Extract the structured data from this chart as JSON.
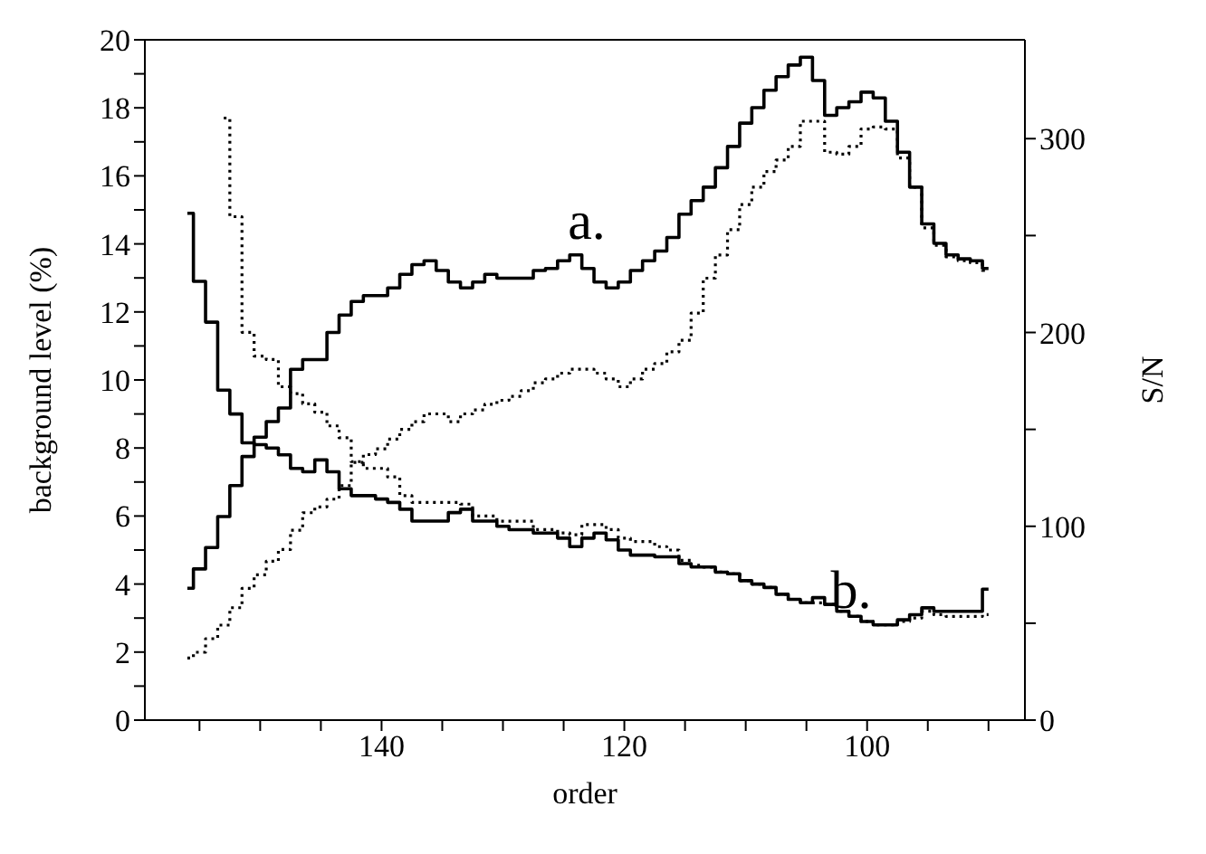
{
  "chart_data": {
    "type": "step",
    "xlabel": "order",
    "ylabel": "background level (%)",
    "y2label": "S/N",
    "xlim": [
      159.5,
      87
    ],
    "xticks": [
      {
        "value": 155,
        "label": null
      },
      {
        "value": 150,
        "label": null
      },
      {
        "value": 145,
        "label": null
      },
      140,
      {
        "value": 135,
        "label": null
      },
      {
        "value": 130,
        "label": null
      },
      {
        "value": 125,
        "label": null
      },
      120,
      {
        "value": 115,
        "label": null
      },
      {
        "value": 110,
        "label": null
      },
      {
        "value": 105,
        "label": null
      },
      100,
      {
        "value": 95,
        "label": null
      },
      {
        "value": 90,
        "label": null
      }
    ],
    "ylim": [
      0,
      20
    ],
    "yticks": [
      0,
      {
        "value": 1,
        "label": null
      },
      2,
      {
        "value": 3,
        "label": null
      },
      4,
      {
        "value": 5,
        "label": null
      },
      6,
      {
        "value": 7,
        "label": null
      },
      8,
      {
        "value": 9,
        "label": null
      },
      10,
      {
        "value": 11,
        "label": null
      },
      12,
      {
        "value": 13,
        "label": null
      },
      14,
      {
        "value": 15,
        "label": null
      },
      16,
      {
        "value": 17,
        "label": null
      },
      18,
      {
        "value": 19,
        "label": null
      },
      20
    ],
    "y2lim": [
      0,
      351
    ],
    "y2ticks": [
      0,
      {
        "value": 50,
        "label": null
      },
      100,
      {
        "value": 150,
        "label": null
      },
      200,
      {
        "value": 250,
        "label": null
      },
      300
    ],
    "annotations": [
      "a.",
      "b."
    ],
    "series": [
      {
        "color": "#000000",
        "axis": "y2",
        "line_style": "solid",
        "x": [
          156,
          155,
          154,
          153,
          152,
          151,
          150,
          149,
          148,
          147,
          146,
          145,
          144,
          143,
          142,
          141,
          140,
          139,
          138,
          137,
          136,
          135,
          134,
          133,
          132,
          131,
          130,
          129,
          128,
          127,
          126,
          125,
          124,
          123,
          122,
          121,
          120,
          119,
          118,
          117,
          116,
          115,
          114,
          113,
          112,
          111,
          110,
          109,
          108,
          107,
          106,
          105,
          104,
          103,
          102,
          101,
          100,
          99,
          98,
          97,
          96,
          95,
          94,
          93,
          92,
          91,
          90
        ],
        "values": [
          68,
          78,
          89,
          105,
          121,
          136,
          146,
          154,
          161,
          181,
          186,
          186,
          200,
          209,
          216,
          219,
          219,
          223,
          230,
          235,
          237,
          232,
          226,
          223,
          226,
          230,
          228,
          228,
          228,
          232,
          233,
          237,
          240,
          233,
          226,
          223,
          226,
          232,
          237,
          242,
          249,
          261,
          268,
          275,
          285,
          296,
          308,
          316,
          325,
          332,
          338,
          342,
          330,
          312,
          316,
          319,
          324,
          321,
          309,
          293,
          275,
          256,
          246,
          240,
          238,
          237,
          233
        ]
      },
      {
        "color": "#000000",
        "axis": "y2",
        "line_style": "dotted",
        "x": [
          156,
          155,
          154,
          153,
          152,
          151,
          150,
          149,
          148,
          147,
          146,
          145,
          144,
          143,
          142,
          141,
          140,
          139,
          138,
          137,
          136,
          135,
          134,
          133,
          132,
          131,
          130,
          129,
          128,
          127,
          126,
          125,
          124,
          123,
          122,
          121,
          120,
          119,
          118,
          117,
          116,
          115,
          114,
          113,
          112,
          111,
          110,
          109,
          108,
          107,
          106,
          105,
          104,
          103,
          102,
          101,
          100,
          99,
          98,
          97,
          96,
          95,
          94,
          93,
          92,
          91,
          90
        ],
        "values": [
          32,
          35,
          42,
          49,
          58,
          68,
          75,
          82,
          88,
          98,
          107,
          110,
          114,
          121,
          133,
          137,
          140,
          145,
          150,
          154,
          158,
          158,
          154,
          158,
          160,
          163,
          165,
          167,
          170,
          174,
          176,
          179,
          181,
          181,
          179,
          176,
          172,
          176,
          181,
          184,
          190,
          196,
          210,
          228,
          240,
          253,
          266,
          275,
          283,
          289,
          296,
          309,
          309,
          293,
          292,
          296,
          305,
          306,
          305,
          290,
          275,
          254,
          245,
          239,
          237,
          236,
          232
        ]
      },
      {
        "color": "#000000",
        "line_style": "solid",
        "x": [
          156,
          155,
          154,
          153,
          152,
          151,
          150,
          149,
          148,
          147,
          146,
          145,
          144,
          143,
          142,
          141,
          140,
          139,
          138,
          137,
          136,
          135,
          134,
          133,
          132,
          131,
          130,
          129,
          128,
          127,
          126,
          125,
          124,
          123,
          122,
          121,
          120,
          119,
          118,
          117,
          116,
          115,
          114,
          113,
          112,
          111,
          110,
          109,
          108,
          107,
          106,
          105,
          104,
          103,
          102,
          101,
          100,
          99,
          98,
          97,
          96,
          95,
          94,
          93,
          92,
          91,
          90
        ],
        "values": [
          14.9,
          12.9,
          11.7,
          9.7,
          9.0,
          8.15,
          8.1,
          8.0,
          7.8,
          7.4,
          7.3,
          7.65,
          7.3,
          6.8,
          6.6,
          6.6,
          6.5,
          6.4,
          6.2,
          5.85,
          5.85,
          5.85,
          6.1,
          6.2,
          5.85,
          5.85,
          5.7,
          5.6,
          5.6,
          5.5,
          5.5,
          5.35,
          5.1,
          5.35,
          5.5,
          5.3,
          5.0,
          4.85,
          4.85,
          4.8,
          4.8,
          4.6,
          4.5,
          4.5,
          4.35,
          4.3,
          4.1,
          4.0,
          3.9,
          3.7,
          3.55,
          3.45,
          3.6,
          3.4,
          3.2,
          3.05,
          2.9,
          2.8,
          2.8,
          2.95,
          3.1,
          3.3,
          3.2,
          3.2,
          3.2,
          3.2,
          3.85
        ]
      },
      {
        "color": "#000000",
        "line_style": "dotted",
        "x": [
          153,
          152,
          151,
          150,
          149,
          148,
          147,
          146,
          145,
          144,
          143,
          142,
          141,
          140,
          139,
          138,
          137,
          136,
          135,
          134,
          133,
          132,
          131,
          130,
          129,
          128,
          127,
          126,
          125,
          124,
          123,
          122,
          121,
          120,
          119,
          118,
          117,
          116,
          115,
          114,
          113,
          112,
          111,
          110,
          109,
          108,
          107,
          106,
          105,
          104,
          103,
          102,
          101,
          100,
          99,
          98,
          97,
          96,
          95,
          94,
          93,
          92,
          91,
          90
        ],
        "values": [
          17.7,
          14.8,
          11.4,
          10.7,
          10.6,
          9.8,
          9.6,
          9.3,
          9.05,
          8.65,
          8.3,
          7.6,
          7.4,
          7.4,
          7.15,
          6.6,
          6.4,
          6.4,
          6.4,
          6.4,
          6.35,
          6.0,
          6.0,
          5.85,
          5.85,
          5.85,
          5.6,
          5.6,
          5.5,
          5.45,
          5.75,
          5.75,
          5.6,
          5.35,
          5.25,
          5.25,
          5.1,
          5.0,
          4.7,
          4.55,
          4.5,
          4.35,
          4.3,
          4.1,
          4.0,
          3.9,
          3.7,
          3.55,
          3.45,
          3.45,
          3.4,
          3.2,
          3.05,
          2.9,
          2.8,
          2.8,
          2.9,
          3.0,
          3.2,
          3.1,
          3.05,
          3.05,
          3.05,
          3.1
        ]
      }
    ]
  }
}
